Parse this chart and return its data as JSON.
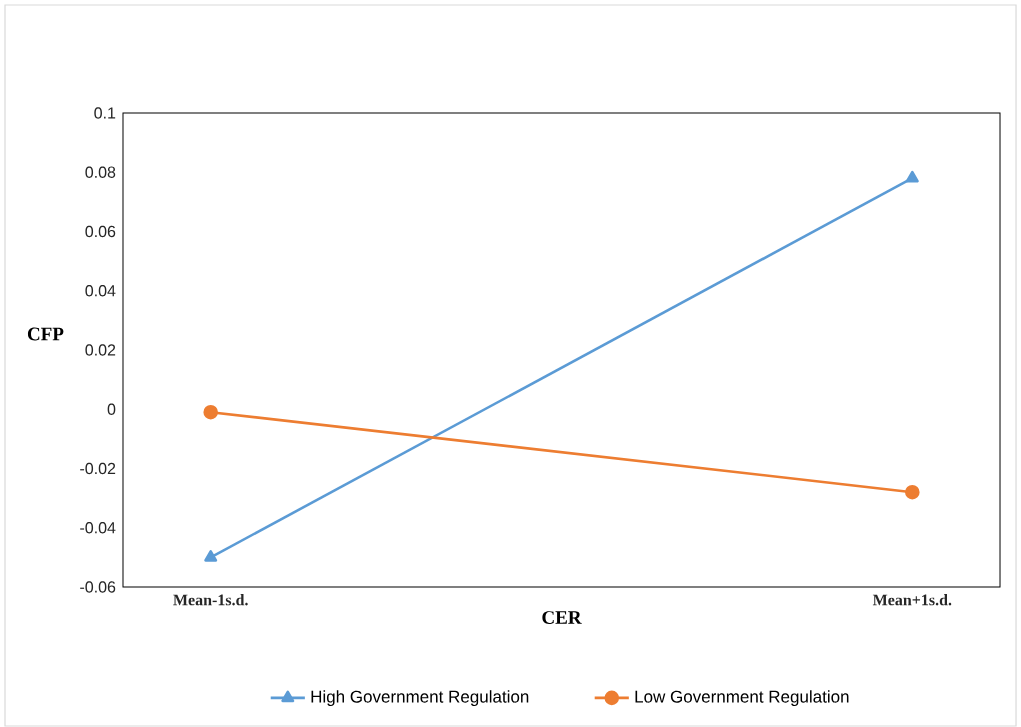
{
  "chart_data": {
    "type": "line",
    "xlabel": "CER",
    "ylabel": "CFP",
    "categories": [
      "Mean-1s.d.",
      "Mean+1s.d."
    ],
    "series": [
      {
        "name": "High Government Regulation",
        "color": "#5b9bd5",
        "marker": "triangle",
        "values": [
          -0.05,
          0.078
        ]
      },
      {
        "name": "Low Government Regulation",
        "color": "#ed7d31",
        "marker": "circle",
        "values": [
          -0.001,
          -0.028
        ]
      }
    ],
    "ylim": [
      -0.06,
      0.1
    ],
    "yticks": [
      -0.06,
      -0.04,
      -0.02,
      0,
      0.02,
      0.04,
      0.06,
      0.08,
      0.1
    ],
    "grid": false,
    "legend": "bottom",
    "line_style": "solid"
  }
}
